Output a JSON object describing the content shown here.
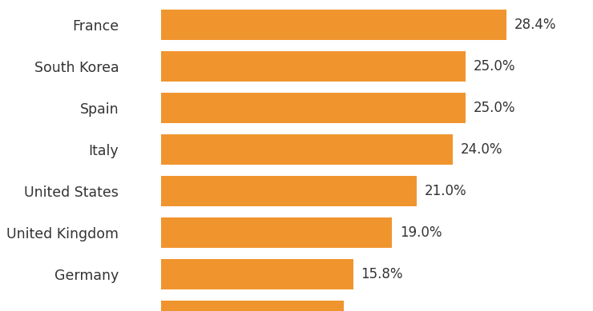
{
  "chart_data": {
    "type": "bar",
    "orientation": "horizontal",
    "categories": [
      "France",
      "South Korea",
      "Spain",
      "Italy",
      "United States",
      "United Kingdom",
      "Germany",
      null
    ],
    "values": [
      28.4,
      25.0,
      25.0,
      24.0,
      21.0,
      19.0,
      15.8,
      15.0
    ],
    "value_labels": [
      "28.4%",
      "25.0%",
      "25.0%",
      "24.0%",
      "21.0%",
      "19.0%",
      "15.8%",
      null
    ],
    "data_labels": true,
    "tick_labels": "y",
    "grid": false,
    "color": "#f0952e",
    "xlim": [
      0,
      35.5
    ]
  }
}
